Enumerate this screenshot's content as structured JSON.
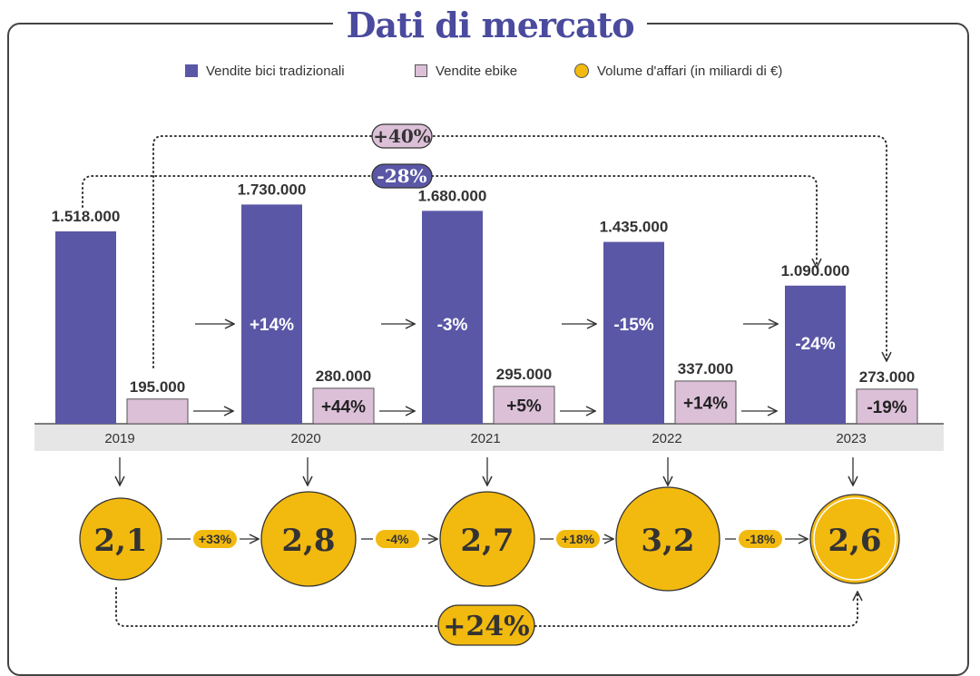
{
  "title": "Dati di mercato",
  "legend": {
    "traditional": "Vendite bici tradizionali",
    "ebike": "Vendite ebike",
    "volume": "Volume d'affari (in miliardi di €)"
  },
  "colors": {
    "traditional": "#5a57a6",
    "ebike": "#dcc0d8",
    "volume": "#f2b90f"
  },
  "chart_data": {
    "type": "bar",
    "categories": [
      "2019",
      "2020",
      "2021",
      "2022",
      "2023"
    ],
    "series": [
      {
        "name": "Vendite bici tradizionali",
        "values": [
          1518000,
          1730000,
          1680000,
          1435000,
          1090000
        ],
        "labels": [
          "1.518.000",
          "1.730.000",
          "1.680.000",
          "1.435.000",
          "1.090.000"
        ],
        "changes": [
          "",
          "+14%",
          "-3%",
          "-15%",
          "-24%"
        ]
      },
      {
        "name": "Vendite ebike",
        "values": [
          195000,
          280000,
          295000,
          337000,
          273000
        ],
        "labels": [
          "195.000",
          "280.000",
          "295.000",
          "337.000",
          "273.000"
        ],
        "changes": [
          "",
          "+44%",
          "+5%",
          "+14%",
          "-19%"
        ]
      }
    ],
    "volume": {
      "name": "Volume d'affari (in miliardi di €)",
      "values": [
        2.1,
        2.8,
        2.7,
        3.2,
        2.6
      ],
      "labels": [
        "2,1",
        "2,8",
        "2,7",
        "3,2",
        "2,6"
      ],
      "changes": [
        "+33%",
        "-4%",
        "+18%",
        "-18%"
      ]
    },
    "overall": {
      "traditional_change": "-28%",
      "ebike_change": "+40%",
      "volume_change": "+24%"
    },
    "ylim": [
      0,
      1900000
    ]
  }
}
